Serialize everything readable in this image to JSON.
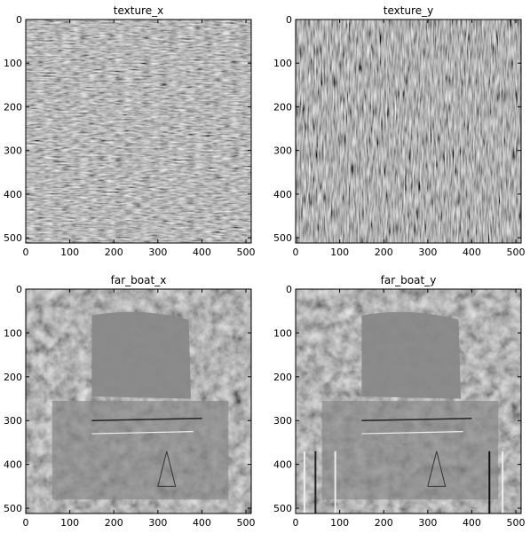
{
  "figure": {
    "background": "#ffffff",
    "colormap": "gray",
    "tick_values": [
      0,
      100,
      200,
      300,
      400,
      500
    ]
  },
  "chart_data": [
    {
      "type": "heatmap",
      "title": "texture_x",
      "xlabel": "",
      "ylabel": "",
      "xlim": [
        0,
        512
      ],
      "ylim": [
        512,
        0
      ],
      "x_ticks": [
        "0",
        "100",
        "200",
        "300",
        "400",
        "500"
      ],
      "y_ticks": [
        "0",
        "100",
        "200",
        "300",
        "400",
        "500"
      ],
      "pattern": "horizontal-gradient-texture",
      "mean_gray": "#808080"
    },
    {
      "type": "heatmap",
      "title": "texture_y",
      "xlabel": "",
      "ylabel": "",
      "xlim": [
        0,
        512
      ],
      "ylim": [
        512,
        0
      ],
      "x_ticks": [
        "0",
        "100",
        "200",
        "300",
        "400",
        "500"
      ],
      "y_ticks": [
        "0",
        "100",
        "200",
        "300",
        "400",
        "500"
      ],
      "pattern": "vertical-gradient-texture",
      "mean_gray": "#808080"
    },
    {
      "type": "heatmap",
      "title": "far_boat_x",
      "xlabel": "",
      "ylabel": "",
      "xlim": [
        0,
        512
      ],
      "ylim": [
        512,
        0
      ],
      "x_ticks": [
        "0",
        "100",
        "200",
        "300",
        "400",
        "500"
      ],
      "y_ticks": [
        "0",
        "100",
        "200",
        "300",
        "400",
        "500"
      ],
      "pattern": "horizontal-gradient-scene",
      "mean_gray": "#8a8a8a"
    },
    {
      "type": "heatmap",
      "title": "far_boat_y",
      "xlabel": "",
      "ylabel": "",
      "xlim": [
        0,
        512
      ],
      "ylim": [
        512,
        0
      ],
      "x_ticks": [
        "0",
        "100",
        "200",
        "300",
        "400",
        "500"
      ],
      "y_ticks": [
        "0",
        "100",
        "200",
        "300",
        "400",
        "500"
      ],
      "pattern": "vertical-gradient-scene",
      "mean_gray": "#8a8a8a"
    }
  ]
}
